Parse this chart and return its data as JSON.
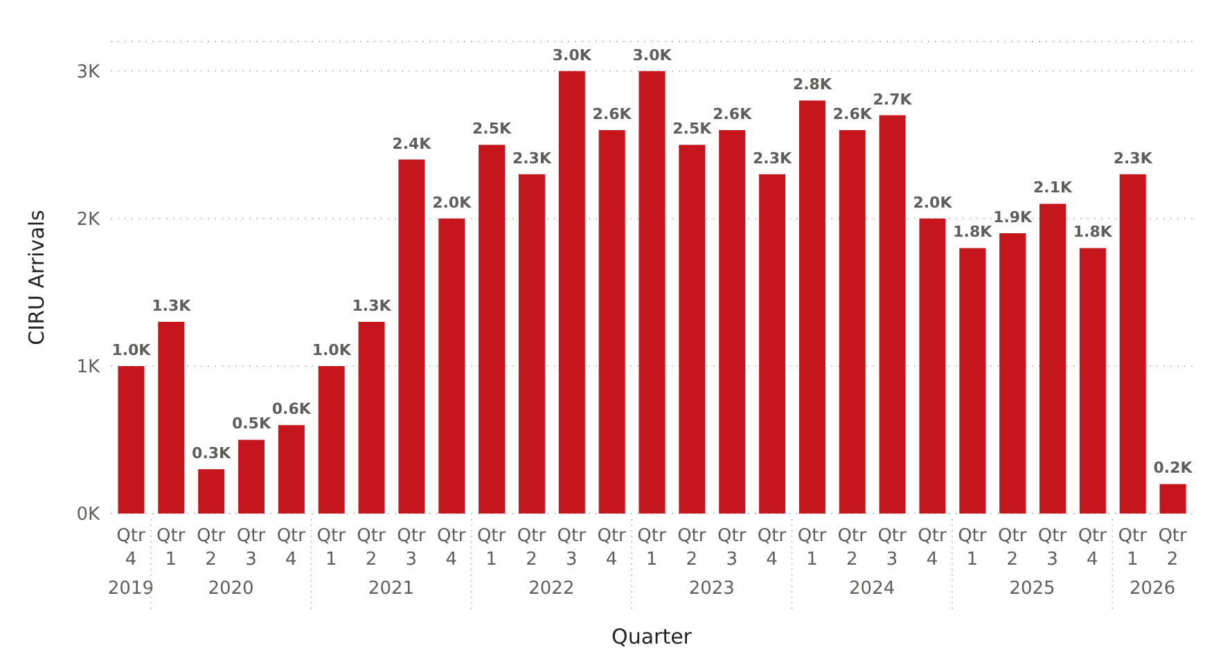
{
  "chart_data": {
    "type": "bar",
    "xlabel": "Quarter",
    "ylabel": "CIRU Arrivals",
    "categories": [
      "Qtr 4",
      "Qtr 1",
      "Qtr 2",
      "Qtr 3",
      "Qtr 4",
      "Qtr 1",
      "Qtr 2",
      "Qtr 3",
      "Qtr 4",
      "Qtr 1",
      "Qtr 2",
      "Qtr 3",
      "Qtr 4",
      "Qtr 1",
      "Qtr 2",
      "Qtr 3",
      "Qtr 4",
      "Qtr 1",
      "Qtr 2",
      "Qtr 3",
      "Qtr 4",
      "Qtr 1",
      "Qtr 2",
      "Qtr 3",
      "Qtr 4",
      "Qtr 1",
      "Qtr 2"
    ],
    "values": [
      1000,
      1300,
      300,
      500,
      600,
      1000,
      1300,
      2400,
      2000,
      2500,
      2300,
      3000,
      2600,
      3000,
      2500,
      2600,
      2300,
      2800,
      2600,
      2700,
      2000,
      1800,
      1900,
      2100,
      1800,
      2300,
      200
    ],
    "value_labels": [
      "1.0K",
      "1.3K",
      "0.3K",
      "0.5K",
      "0.6K",
      "1.0K",
      "1.3K",
      "2.4K",
      "2.0K",
      "2.5K",
      "2.3K",
      "3.0K",
      "2.6K",
      "3.0K",
      "2.5K",
      "2.6K",
      "2.3K",
      "2.8K",
      "2.6K",
      "2.7K",
      "2.0K",
      "1.8K",
      "1.9K",
      "2.1K",
      "1.8K",
      "2.3K",
      "0.2K"
    ],
    "color": "#c4161c",
    "annotations": [
      "2019",
      "2020",
      "2021",
      "2022",
      "2023",
      "2024",
      "2025",
      "2026"
    ],
    "ylim": [
      0,
      3200
    ],
    "yticks": [
      {
        "value": 0,
        "label": "0K"
      },
      {
        "value": 1000,
        "label": "1K"
      },
      {
        "value": 2000,
        "label": "2K"
      },
      {
        "value": 3000,
        "label": "3K"
      }
    ],
    "grid": "y"
  }
}
